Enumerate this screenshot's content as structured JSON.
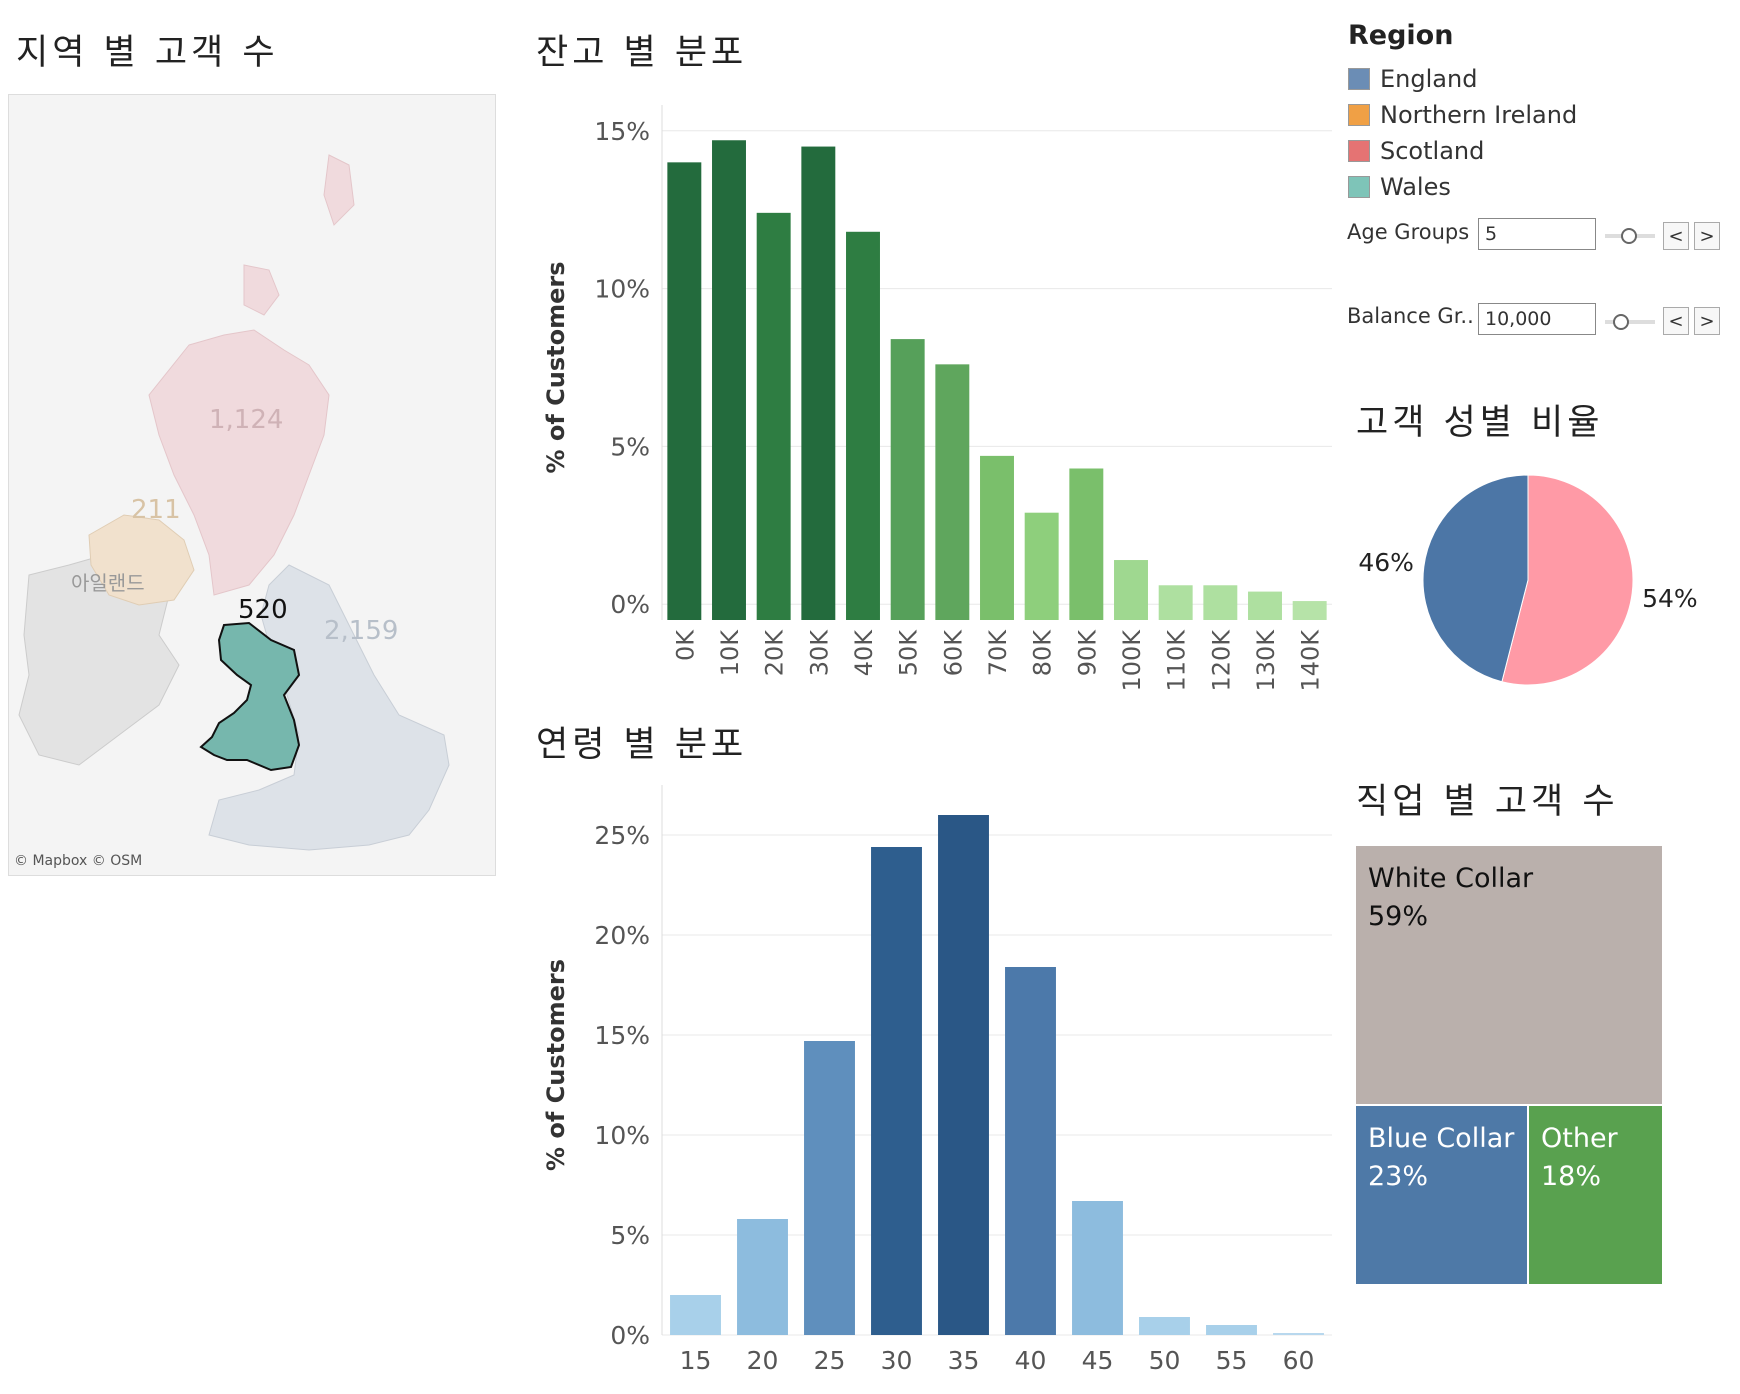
{
  "map_panel": {
    "title": "지역 별 고객 수",
    "attribution": "© Mapbox © OSM",
    "ireland_label": "아일랜드",
    "counts": {
      "scotland": "1,124",
      "northern_ireland": "211",
      "wales": "520",
      "england": "2,159"
    }
  },
  "legend": {
    "title": "Region",
    "items": [
      {
        "label": "England",
        "color": "#6b8db5"
      },
      {
        "label": "Northern Ireland",
        "color": "#f0a045"
      },
      {
        "label": "Scotland",
        "color": "#e57373"
      },
      {
        "label": "Wales",
        "color": "#7ec4b8"
      }
    ]
  },
  "controls": {
    "age": {
      "label": "Age Groups",
      "value": "5",
      "prev": "<",
      "next": ">"
    },
    "balance": {
      "label": "Balance Gr..",
      "value": "10,000",
      "prev": "<",
      "next": ">"
    }
  },
  "colors": {
    "female": "#ff9aa6",
    "male": "#4c76a6",
    "treemap": [
      "#bab0ac",
      "#4e79a7",
      "#59a14f"
    ]
  },
  "chart_data": [
    {
      "type": "bar",
      "title": "잔고 별 분포",
      "ylabel": "% of Customers",
      "categories": [
        "0K",
        "10K",
        "20K",
        "30K",
        "40K",
        "50K",
        "60K",
        "70K",
        "80K",
        "90K",
        "100K",
        "110K",
        "120K",
        "130K",
        "140K"
      ],
      "values": [
        14.0,
        14.7,
        12.4,
        14.5,
        11.8,
        8.4,
        7.6,
        4.7,
        2.9,
        4.3,
        1.4,
        0.6,
        0.6,
        0.4,
        0.1
      ],
      "ylim": [
        -0.5,
        15.5
      ],
      "yticks": [
        "15%",
        "10%",
        "5%",
        "0%"
      ],
      "colors": [
        "#236b3d",
        "#236b3d",
        "#2e7d42",
        "#236b3d",
        "#2e7d42",
        "#56a05a",
        "#5fa65d",
        "#7abf6b",
        "#8ecf7c",
        "#7abf6b",
        "#9fd890",
        "#aee0a0",
        "#aee0a0",
        "#aee0a0",
        "#b6e3a8"
      ],
      "grid": true
    },
    {
      "type": "bar",
      "title": "연령 별 분포",
      "ylabel": "% of Customers",
      "categories": [
        "15",
        "20",
        "25",
        "30",
        "35",
        "40",
        "45",
        "50",
        "55",
        "60"
      ],
      "values": [
        2.0,
        5.8,
        14.7,
        24.4,
        26.0,
        18.4,
        6.7,
        0.9,
        0.5,
        0.1
      ],
      "ylim": [
        0,
        27
      ],
      "yticks": [
        "25%",
        "20%",
        "15%",
        "10%",
        "5%",
        "0%"
      ],
      "colors": [
        "#a8d0ea",
        "#8dbcde",
        "#5f8fbd",
        "#2e5e8e",
        "#2a5786",
        "#4c79aa",
        "#8dbcde",
        "#a8d0ea",
        "#a8d0ea",
        "#b8d8ee"
      ],
      "grid": true
    },
    {
      "type": "pie",
      "title": "고객 성별 비율",
      "slices": [
        {
          "label": "54%",
          "value": 54,
          "color": "#ff9aa6"
        },
        {
          "label": "46%",
          "value": 46,
          "color": "#4c76a6"
        }
      ]
    },
    {
      "type": "treemap",
      "title": "직업 별 고객 수",
      "items": [
        {
          "name": "White Collar",
          "value": 59,
          "label": "59%",
          "color": "#bab0ac"
        },
        {
          "name": "Blue Collar",
          "value": 23,
          "label": "23%",
          "color": "#4e79a7"
        },
        {
          "name": "Other",
          "value": 18,
          "label": "18%",
          "color": "#59a14f"
        }
      ]
    }
  ]
}
